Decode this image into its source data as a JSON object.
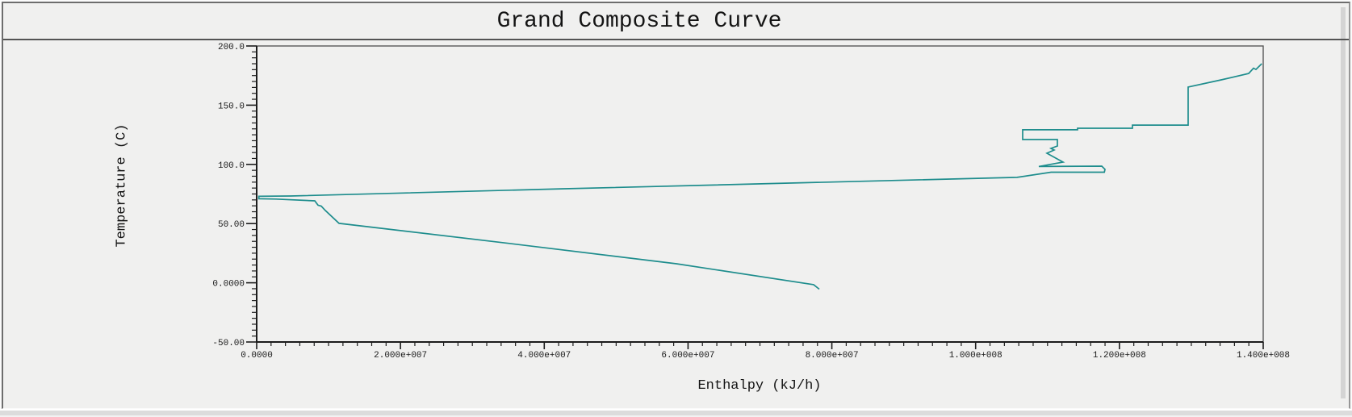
{
  "window": {
    "frame_style": "sunken-gray",
    "background_color": "#f0f0ef"
  },
  "colors": {
    "curve": "#1e8d8d",
    "axis": "#1c1c1c",
    "plot_border": "#4d4d4d",
    "text": "#1a1a1a",
    "panel_background": "#f0f0ef",
    "title_separator": "#545454"
  },
  "chart_data": {
    "type": "line",
    "title": "Grand Composite Curve",
    "xlabel": "Enthalpy (kJ/h)",
    "ylabel": "Temperature (C)",
    "xlim": [
      0,
      140000000
    ],
    "ylim": [
      -50,
      200
    ],
    "grid": false,
    "legend": null,
    "x_axis": {
      "major_tick_interval": 20000000,
      "minor_tick_interval": 2000000,
      "tick_values": [
        0,
        20000000,
        40000000,
        60000000,
        80000000,
        100000000,
        120000000,
        140000000
      ],
      "tick_labels": [
        "0.0000",
        "2.000e+007",
        "4.000e+007",
        "6.000e+007",
        "8.000e+007",
        "1.000e+008",
        "1.200e+008",
        "1.400e+008"
      ]
    },
    "y_axis": {
      "major_tick_interval": 50,
      "minor_tick_interval": 5,
      "tick_values": [
        200,
        150,
        100,
        50,
        0,
        -50
      ],
      "tick_labels": [
        "200.0",
        "150.0",
        "100.0",
        "50.00",
        "0.0000",
        "-50.00"
      ]
    },
    "series": [
      {
        "name": "grand-composite-curve",
        "color": "#1e8d8d",
        "points": [
          [
            139800000,
            185.0
          ],
          [
            138990000,
            180.2
          ],
          [
            138650000,
            181.3
          ],
          [
            137980000,
            176.8
          ],
          [
            134160000,
            171.4
          ],
          [
            129560000,
            165.3
          ],
          [
            129560000,
            133.2
          ],
          [
            121810000,
            133.2
          ],
          [
            121810000,
            130.5
          ],
          [
            114180000,
            130.5
          ],
          [
            114180000,
            129.2
          ],
          [
            106540000,
            129.2
          ],
          [
            106540000,
            121.0
          ],
          [
            111370000,
            121.0
          ],
          [
            111370000,
            115.5
          ],
          [
            110470000,
            113.5
          ],
          [
            110920000,
            112.1
          ],
          [
            109910000,
            109.4
          ],
          [
            112160000,
            101.9
          ],
          [
            108790000,
            98.2
          ],
          [
            117550000,
            98.5
          ],
          [
            118000000,
            95.8
          ],
          [
            117900000,
            93.4
          ],
          [
            110500000,
            93.4
          ],
          [
            105760000,
            89.0
          ],
          [
            42890000,
            79.4
          ],
          [
            4700000,
            73.3
          ],
          [
            300000,
            73.1
          ],
          [
            300000,
            71.0
          ],
          [
            2700000,
            70.7
          ],
          [
            8080000,
            69.2
          ],
          [
            8530000,
            65.5
          ],
          [
            8980000,
            64.8
          ],
          [
            9540000,
            61.1
          ],
          [
            11450000,
            50.2
          ],
          [
            35030000,
            33.3
          ],
          [
            58380000,
            16.1
          ],
          [
            77470000,
            -1.6
          ],
          [
            78250000,
            -5.4
          ]
        ]
      }
    ]
  }
}
